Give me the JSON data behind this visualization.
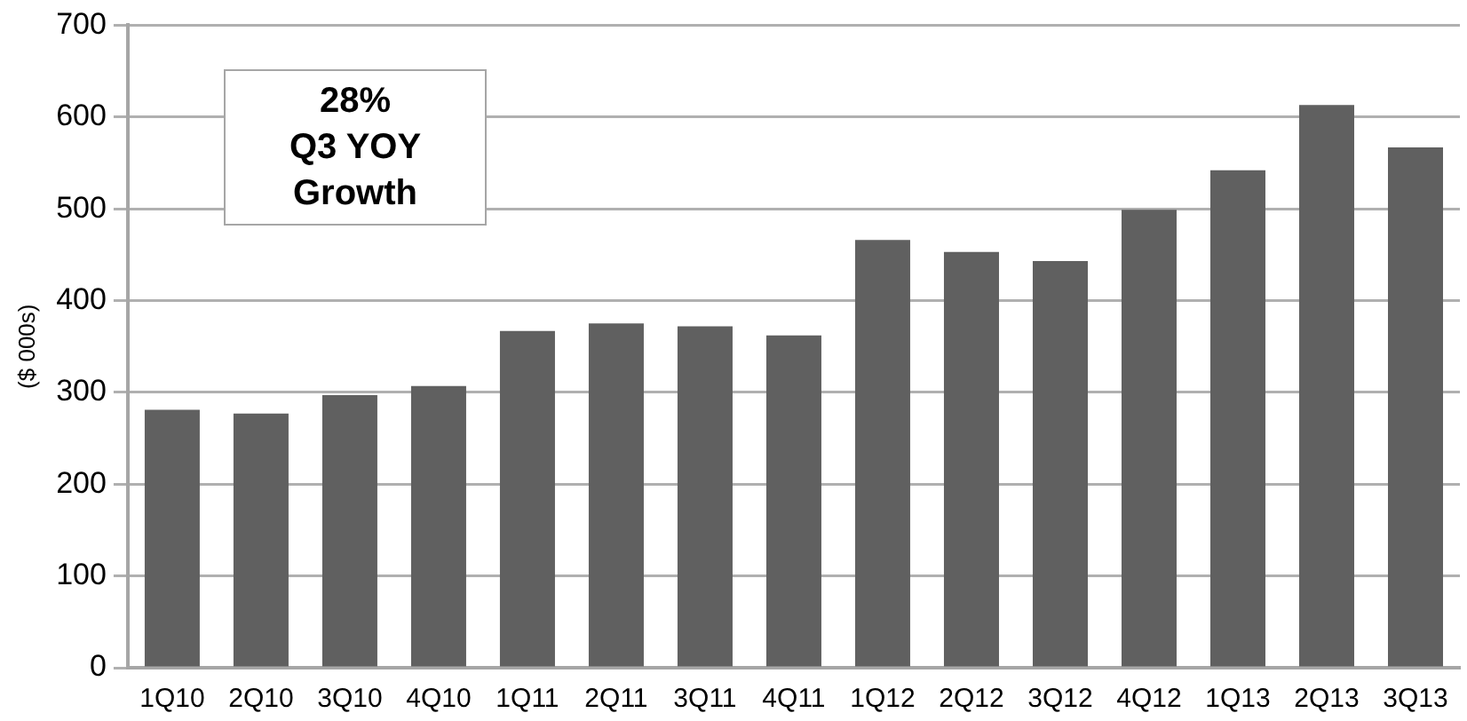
{
  "chart_data": {
    "type": "bar",
    "ylabel": "($ 000s)",
    "categories": [
      "1Q10",
      "2Q10",
      "3Q10",
      "4Q10",
      "1Q11",
      "2Q11",
      "3Q11",
      "4Q11",
      "1Q12",
      "2Q12",
      "3Q12",
      "4Q12",
      "1Q13",
      "2Q13",
      "3Q13"
    ],
    "values": [
      281,
      277,
      297,
      307,
      367,
      375,
      372,
      362,
      466,
      453,
      443,
      499,
      542,
      613,
      567
    ],
    "color": "#606060",
    "ylim": [
      0,
      700
    ],
    "yticks": [
      0,
      100,
      200,
      300,
      400,
      500,
      600,
      700
    ],
    "grid": "y",
    "legend": false,
    "annotations": [
      "28%\nQ3 YOY\nGrowth"
    ]
  }
}
